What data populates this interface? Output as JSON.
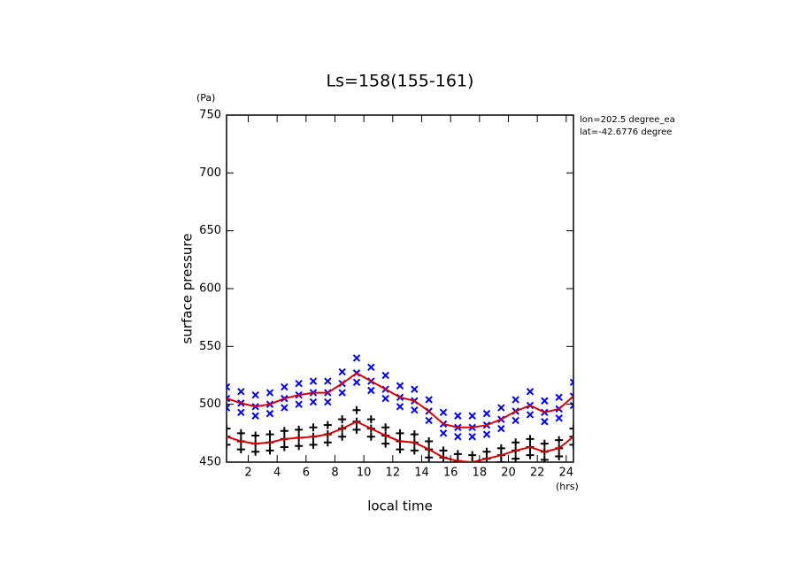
{
  "chart_data": {
    "type": "scatter",
    "title": "Ls=158(155-161)",
    "x_label": "local time",
    "y_label": "surface pressure",
    "x_unit": "(hrs)",
    "y_unit": "(Pa)",
    "annotations": [
      "lon=202.5 degree_ea",
      "lat=-42.6776 degree"
    ],
    "xlim": [
      0.5,
      24.5
    ],
    "ylim": [
      450,
      750
    ],
    "xticks": [
      2,
      4,
      6,
      8,
      10,
      12,
      14,
      16,
      18,
      20,
      22,
      24
    ],
    "yticks": [
      450,
      500,
      550,
      600,
      650,
      700,
      750
    ],
    "series": [
      {
        "kind": "x-marker",
        "color": "#0000ff",
        "x": [
          0.5,
          0.5,
          0.5,
          1.5,
          1.5,
          1.5,
          2.5,
          2.5,
          2.5,
          3.5,
          3.5,
          3.5,
          4.5,
          4.5,
          4.5,
          5.5,
          5.5,
          5.5,
          6.5,
          6.5,
          6.5,
          7.5,
          7.5,
          7.5,
          8.5,
          8.5,
          8.5,
          9.5,
          9.5,
          9.5,
          10.5,
          10.5,
          10.5,
          11.5,
          11.5,
          11.5,
          12.5,
          12.5,
          12.5,
          13.5,
          13.5,
          13.5,
          14.5,
          14.5,
          14.5,
          15.5,
          15.5,
          15.5,
          16.5,
          16.5,
          16.5,
          17.5,
          17.5,
          17.5,
          18.5,
          18.5,
          18.5,
          19.5,
          19.5,
          19.5,
          20.5,
          20.5,
          20.5,
          21.5,
          21.5,
          21.5,
          22.5,
          22.5,
          22.5,
          23.5,
          23.5,
          23.5,
          24.5,
          24.5,
          24.5
        ],
        "values": [
          497,
          505,
          515,
          493,
          501,
          511,
          490,
          498,
          508,
          492,
          500,
          510,
          497,
          505,
          515,
          500,
          508,
          518,
          502,
          510,
          520,
          502,
          510,
          520,
          510,
          518,
          528,
          519,
          527,
          540,
          512,
          520,
          532,
          505,
          513,
          525,
          498,
          506,
          516,
          495,
          503,
          513,
          486,
          494,
          504,
          475,
          483,
          493,
          472,
          480,
          490,
          472,
          480,
          490,
          474,
          482,
          492,
          479,
          487,
          497,
          486,
          494,
          504,
          491,
          499,
          511,
          485,
          493,
          503,
          488,
          496,
          506,
          499,
          507,
          519
        ]
      },
      {
        "kind": "plus-marker",
        "color": "#000000",
        "x": [
          0.5,
          0.5,
          0.5,
          1.5,
          1.5,
          1.5,
          2.5,
          2.5,
          2.5,
          3.5,
          3.5,
          3.5,
          4.5,
          4.5,
          4.5,
          5.5,
          5.5,
          5.5,
          6.5,
          6.5,
          6.5,
          7.5,
          7.5,
          7.5,
          8.5,
          8.5,
          8.5,
          9.5,
          9.5,
          9.5,
          10.5,
          10.5,
          10.5,
          11.5,
          11.5,
          11.5,
          12.5,
          12.5,
          12.5,
          13.5,
          13.5,
          13.5,
          14.5,
          14.5,
          14.5,
          15.5,
          15.5,
          15.5,
          16.5,
          16.5,
          16.5,
          17.5,
          17.5,
          17.5,
          18.5,
          18.5,
          18.5,
          19.5,
          19.5,
          19.5,
          20.5,
          20.5,
          20.5,
          21.5,
          21.5,
          21.5,
          22.5,
          22.5,
          22.5,
          23.5,
          23.5,
          23.5,
          24.5,
          24.5,
          24.5
        ],
        "values": [
          465,
          472,
          479,
          461,
          468,
          475,
          459,
          466,
          473,
          460,
          467,
          474,
          463,
          470,
          477,
          464,
          471,
          478,
          465,
          472,
          480,
          467,
          474,
          482,
          472,
          479,
          487,
          478,
          485,
          495,
          472,
          479,
          487,
          466,
          473,
          480,
          461,
          468,
          475,
          460,
          467,
          474,
          454,
          461,
          468,
          448,
          454,
          460,
          446,
          451,
          457,
          446,
          450,
          456,
          447,
          453,
          459,
          450,
          456,
          462,
          453,
          460,
          467,
          456,
          463,
          470,
          452,
          459,
          466,
          455,
          462,
          469,
          465,
          472,
          479
        ]
      },
      {
        "kind": "line",
        "color": "#e00000",
        "x": [
          0.5,
          1.5,
          2.5,
          3.5,
          4.5,
          5.5,
          6.5,
          7.5,
          8.5,
          9.5,
          10.5,
          11.5,
          12.5,
          13.5,
          14.5,
          15.5,
          16.5,
          17.5,
          18.5,
          19.5,
          20.5,
          21.5,
          22.5,
          23.5,
          24.5
        ],
        "values": [
          505,
          501,
          498,
          500,
          505,
          508,
          510,
          510,
          518,
          527,
          520,
          513,
          506,
          503,
          494,
          483,
          480,
          480,
          482,
          487,
          494,
          499,
          493,
          496,
          507
        ]
      },
      {
        "kind": "line",
        "color": "#e00000",
        "x": [
          0.5,
          1.5,
          2.5,
          3.5,
          4.5,
          5.5,
          6.5,
          7.5,
          8.5,
          9.5,
          10.5,
          11.5,
          12.5,
          13.5,
          14.5,
          15.5,
          16.5,
          17.5,
          18.5,
          19.5,
          20.5,
          21.5,
          22.5,
          23.5,
          24.5
        ],
        "values": [
          472,
          468,
          466,
          467,
          470,
          471,
          472,
          474,
          479,
          485,
          479,
          473,
          468,
          467,
          461,
          454,
          451,
          450,
          453,
          456,
          460,
          463,
          459,
          462,
          472
        ]
      }
    ]
  }
}
